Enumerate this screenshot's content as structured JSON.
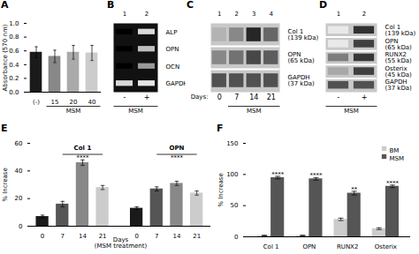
{
  "chart_data": [
    {
      "type": "bar",
      "title": "A",
      "categories": [
        "(-)",
        "15",
        "20",
        "40"
      ],
      "values": [
        0.58,
        0.52,
        0.58,
        0.57
      ],
      "errors": [
        0.08,
        0.09,
        0.1,
        0.11
      ],
      "colors": [
        "#1a1a1a",
        "#888888",
        "#aaaaaa",
        "#cccccc"
      ],
      "ylabel": "Absorbance (570 nm)",
      "xlabel": "MSM",
      "xlabel_span": [
        "15",
        "40"
      ],
      "ylim": [
        0,
        1.0
      ],
      "yticks": [
        {
          "value": 0.0,
          "label": "0.0"
        },
        0.2,
        0.4,
        0.6,
        0.8,
        {
          "value": 1.0,
          "label": "1.0"
        }
      ]
    },
    {
      "type": "heatmap",
      "title": "B",
      "categories": [
        "1",
        "2"
      ],
      "x_labels_below": [
        "-",
        "+"
      ],
      "rows": [
        "ALP",
        "OPN",
        "OCN",
        "GAPDH"
      ],
      "cells": [
        [
          0.0,
          0.85
        ],
        [
          0.0,
          0.75
        ],
        [
          0.0,
          0.6
        ],
        [
          0.85,
          0.9
        ]
      ],
      "zlim": [
        0,
        1
      ],
      "xlabel": "MSM",
      "xlabel_span": [
        "1",
        "2"
      ]
    },
    {
      "type": "heatmap",
      "title": "C",
      "categories": [
        "1",
        "2",
        "3",
        "4"
      ],
      "x_labels_below_title": "Days:",
      "x_labels_below": [
        "0",
        "7",
        "14",
        "21"
      ],
      "rows": [
        "Col 1\n(139 kDa)",
        "OPN\n(65 kDa)",
        "GAPDH\n(37 kDa)"
      ],
      "cells": [
        [
          0.35,
          0.55,
          1.0,
          0.7
        ],
        [
          0.55,
          0.65,
          0.85,
          0.75
        ],
        [
          0.8,
          0.8,
          0.8,
          0.8
        ]
      ],
      "zlim": [
        0,
        1
      ],
      "xlabel": "MSM",
      "xlabel_span": [
        "2",
        "4"
      ]
    },
    {
      "type": "heatmap",
      "title": "D",
      "categories": [
        "1",
        "2"
      ],
      "x_labels_below": [
        "-",
        "+"
      ],
      "rows": [
        "Col 1\n(139 kDa)",
        "OPN\n(65 kDa)",
        "RUNX2\n(55 kDa)",
        "Osterix\n(45 kDa)",
        "GAPDH\n(37 kDa)"
      ],
      "cells": [
        [
          0.1,
          0.95
        ],
        [
          0.1,
          0.88
        ],
        [
          0.6,
          0.92
        ],
        [
          0.4,
          0.88
        ],
        [
          0.8,
          0.8
        ]
      ],
      "zlim": [
        0,
        1
      ],
      "xlabel": "MSM",
      "xlabel_span": [
        "1",
        "2"
      ]
    },
    {
      "type": "bar",
      "title": "E",
      "groups": [
        {
          "name": "Col 1",
          "categories": [
            "0",
            "7",
            "14",
            "21"
          ],
          "values": [
            7,
            16,
            46,
            28
          ],
          "errors": [
            1.0,
            2.0,
            2.0,
            1.5
          ],
          "colors": [
            "#1a1a1a",
            "#555555",
            "#888888",
            "#cccccc"
          ],
          "annotation": "****",
          "annotation_span": [
            "7",
            "21"
          ]
        },
        {
          "name": "OPN",
          "categories": [
            "0",
            "7",
            "14",
            "21"
          ],
          "values": [
            13,
            27,
            31,
            24
          ],
          "errors": [
            1.0,
            1.5,
            1.5,
            1.5
          ],
          "colors": [
            "#1a1a1a",
            "#555555",
            "#888888",
            "#cccccc"
          ],
          "annotation": "****",
          "annotation_span": [
            "7",
            "21"
          ]
        }
      ],
      "ylabel": "% Increase",
      "xlabel": "Days\n(MSM treatment)",
      "ylim": [
        0,
        60
      ],
      "yticks": [
        0,
        20,
        40,
        60
      ]
    },
    {
      "type": "bar",
      "title": "F",
      "categories": [
        "Col 1",
        "OPN",
        "RUNX2",
        "Osterix"
      ],
      "series": [
        {
          "name": "BM",
          "color": "#cccccc",
          "values": [
            2,
            2,
            28,
            13
          ],
          "errors": [
            0.5,
            0.5,
            2.0,
            1.5
          ]
        },
        {
          "name": "MSM",
          "color": "#555555",
          "values": [
            95,
            93,
            70,
            81
          ],
          "errors": [
            2.0,
            2.0,
            3.0,
            2.0
          ]
        }
      ],
      "annotations": [
        {
          "text": "****",
          "x": "Col 1",
          "series": "MSM",
          "y": 97
        },
        {
          "text": "****",
          "x": "OPN",
          "series": "MSM",
          "y": 95
        },
        {
          "text": "**",
          "x": "RUNX2",
          "series": "MSM",
          "y": 73
        },
        {
          "text": "****",
          "x": "Osterix",
          "series": "MSM",
          "y": 83
        }
      ],
      "ylabel": "% Increase",
      "ylim": [
        0,
        150
      ],
      "yticks": [
        0,
        50,
        100,
        150
      ],
      "legend": "upper right"
    }
  ]
}
